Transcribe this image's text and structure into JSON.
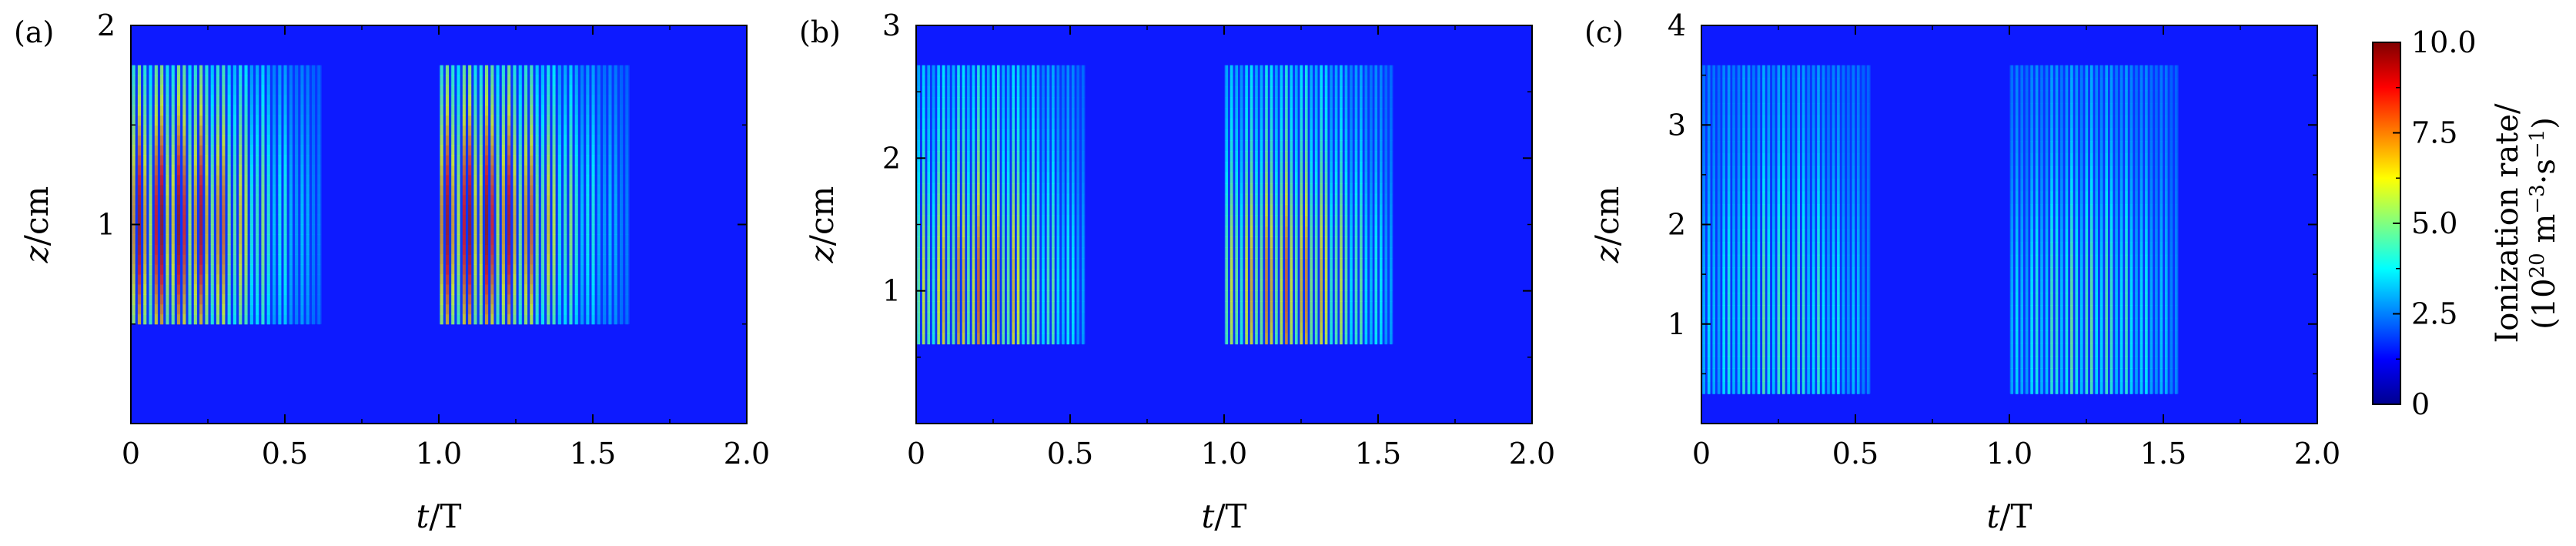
{
  "chart_data": [
    {
      "type": "heatmap",
      "panel_label": "(a)",
      "xlabel_italic": "t",
      "xlabel_rest": "/T",
      "ylabel_italic": "z",
      "ylabel_rest": "/cm",
      "xlim": [
        0,
        2.0
      ],
      "ylim": [
        0,
        2
      ],
      "xticks": [
        0,
        0.5,
        1.0,
        1.5,
        2.0
      ],
      "xtick_labels": [
        "0",
        "0.5",
        "1.0",
        "1.5",
        "2.0"
      ],
      "yticks": [
        1,
        2
      ],
      "ytick_labels": [
        "1",
        "2"
      ],
      "pulses": [
        {
          "t_start": 0.0,
          "t_end": 0.62,
          "z_low": 0.5,
          "z_high": 1.8,
          "peak_t": 0.12,
          "peak_z": 1.0,
          "peak_rate": 10.0
        },
        {
          "t_start": 1.0,
          "t_end": 1.62,
          "z_low": 0.5,
          "z_high": 1.8,
          "peak_t": 1.12,
          "peak_z": 1.0,
          "peak_rate": 10.0
        }
      ]
    },
    {
      "type": "heatmap",
      "panel_label": "(b)",
      "xlabel_italic": "t",
      "xlabel_rest": "/T",
      "ylabel_italic": "z",
      "ylabel_rest": "/cm",
      "xlim": [
        0,
        2.0
      ],
      "ylim": [
        0,
        3
      ],
      "xticks": [
        0,
        0.5,
        1.0,
        1.5,
        2.0
      ],
      "xtick_labels": [
        "0",
        "0.5",
        "1.0",
        "1.5",
        "2.0"
      ],
      "yticks": [
        1,
        2,
        3
      ],
      "ytick_labels": [
        "1",
        "2",
        "3"
      ],
      "pulses": [
        {
          "t_start": 0.0,
          "t_end": 0.55,
          "z_low": 0.6,
          "z_high": 2.7,
          "peak_t": 0.2,
          "peak_z": 1.0,
          "peak_rate": 7.5
        },
        {
          "t_start": 1.0,
          "t_end": 1.55,
          "z_low": 0.6,
          "z_high": 2.7,
          "peak_t": 1.2,
          "peak_z": 1.0,
          "peak_rate": 7.5
        }
      ]
    },
    {
      "type": "heatmap",
      "panel_label": "(c)",
      "xlabel_italic": "t",
      "xlabel_rest": "/T",
      "ylabel_italic": "z",
      "ylabel_rest": "/cm",
      "xlim": [
        0,
        2.0
      ],
      "ylim": [
        0,
        4
      ],
      "xticks": [
        0,
        0.5,
        1.0,
        1.5,
        2.0
      ],
      "xtick_labels": [
        "0",
        "0.5",
        "1.0",
        "1.5",
        "2.0"
      ],
      "yticks": [
        1,
        2,
        3,
        4
      ],
      "ytick_labels": [
        "1",
        "2",
        "3",
        "4"
      ],
      "pulses": [
        {
          "t_start": 0.0,
          "t_end": 0.55,
          "z_low": 0.3,
          "z_high": 3.6,
          "peak_t": 0.25,
          "peak_z": 1.0,
          "peak_rate": 4.0
        },
        {
          "t_start": 1.0,
          "t_end": 1.55,
          "z_low": 0.3,
          "z_high": 3.6,
          "peak_t": 1.25,
          "peak_z": 1.0,
          "peak_rate": 4.0
        }
      ]
    }
  ],
  "colorbar": {
    "label_line1": "Ionization rate/",
    "label_line2_prefix": "(10",
    "label_line2_exp1": "20",
    "label_line2_mid": " m",
    "label_line2_exp2": "−3",
    "label_line2_mid2": "·s",
    "label_line2_exp3": "−1",
    "label_line2_suffix": ")",
    "range": [
      0,
      10.0
    ],
    "ticks": [
      0,
      2.5,
      5.0,
      7.5,
      10.0
    ],
    "tick_labels": [
      "0",
      "2.5",
      "5.0",
      "7.5",
      "10.0"
    ],
    "colormap": [
      "#00008f",
      "#0000ff",
      "#0080ff",
      "#00ffff",
      "#80ff80",
      "#ffff00",
      "#ff8000",
      "#ff0000",
      "#800000"
    ]
  }
}
